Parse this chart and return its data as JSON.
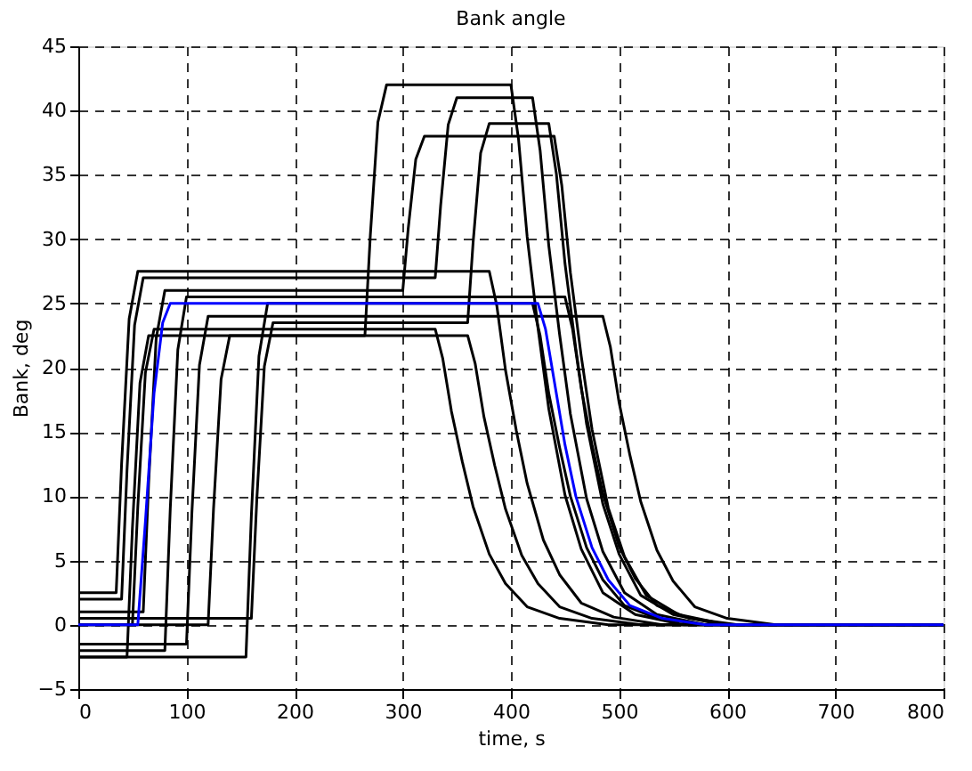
{
  "chart_data": {
    "type": "line",
    "title": "Bank angle",
    "xlabel": "time, s",
    "ylabel": "Bank, deg",
    "xlim": [
      0,
      800
    ],
    "xticks": [
      0,
      100,
      200,
      300,
      400,
      500,
      600,
      700,
      800
    ],
    "ylim": [
      -5,
      45
    ],
    "yticks": [
      -5,
      0,
      5,
      10,
      15,
      20,
      25,
      30,
      35,
      40,
      45
    ],
    "grid": true,
    "legend": false,
    "marker": "none",
    "line_style": "solid",
    "series": [
      {
        "color": "#000000",
        "x": [
          0,
          35,
          40,
          47,
          55,
          380,
          387,
          395,
          405,
          415,
          430,
          445,
          465,
          495,
          540,
          800
        ],
        "values": [
          2.5,
          2.5,
          12.5,
          23.8,
          27.5,
          27.5,
          24.8,
          19.8,
          15.1,
          11,
          6.6,
          3.9,
          1.7,
          0.6,
          0,
          0
        ]
      },
      {
        "color": "#000000",
        "x": [
          0,
          45,
          50,
          57,
          65,
          360,
          367,
          375,
          385,
          395,
          410,
          425,
          445,
          475,
          520,
          800
        ],
        "values": [
          -2.5,
          -2.5,
          7.5,
          18.8,
          22.5,
          22.5,
          20.3,
          16.2,
          12.4,
          9,
          5.4,
          3.2,
          1.4,
          0.5,
          0,
          0
        ]
      },
      {
        "color": "#000000",
        "x": [
          0,
          120,
          125,
          132,
          140,
          265,
          270,
          277,
          285,
          400,
          407,
          415,
          425,
          435,
          450,
          465,
          485,
          515,
          560,
          800
        ],
        "values": [
          0,
          0,
          9,
          19.1,
          22.5,
          22.5,
          30.3,
          39.1,
          42,
          42,
          37.8,
          30.2,
          23.1,
          16.8,
          10.1,
          5.9,
          2.5,
          0.8,
          0,
          0
        ]
      },
      {
        "color": "#000000",
        "x": [
          0,
          155,
          160,
          167,
          175,
          420,
          427,
          435,
          445,
          455,
          470,
          485,
          505,
          535,
          580,
          800
        ],
        "values": [
          -2.5,
          -2.5,
          8.5,
          20.9,
          25,
          25,
          22.5,
          18,
          13.8,
          10,
          6,
          3.5,
          1.5,
          0.5,
          0,
          0
        ]
      },
      {
        "color": "#000000",
        "x": [
          0,
          60,
          65,
          72,
          80,
          300,
          305,
          312,
          320,
          440,
          447,
          455,
          465,
          475,
          490,
          505,
          525,
          555,
          600,
          800
        ],
        "values": [
          1,
          1,
          11,
          22.3,
          26,
          26,
          30.8,
          36.2,
          38,
          38,
          34.2,
          27.4,
          20.9,
          15.2,
          9.1,
          5.3,
          2.3,
          0.8,
          0,
          0
        ]
      },
      {
        "color": "#000000",
        "x": [
          0,
          100,
          105,
          112,
          120,
          485,
          492,
          500,
          510,
          520,
          535,
          550,
          570,
          600,
          645,
          800
        ],
        "values": [
          -1.5,
          -1.5,
          8.7,
          20.2,
          24,
          24,
          21.6,
          17.3,
          13.2,
          9.6,
          5.8,
          3.4,
          1.4,
          0.5,
          0,
          0
        ]
      },
      {
        "color": "#000000",
        "x": [
          0,
          40,
          45,
          52,
          60,
          330,
          335,
          342,
          350,
          420,
          427,
          435,
          445,
          455,
          470,
          485,
          505,
          535,
          580,
          800
        ],
        "values": [
          2,
          2,
          12,
          23.3,
          27,
          27,
          32.6,
          38.9,
          41,
          41,
          36.9,
          29.5,
          22.6,
          16.4,
          9.8,
          5.7,
          2.5,
          0.8,
          0,
          0
        ]
      },
      {
        "color": "#000000",
        "x": [
          0,
          50,
          55,
          62,
          70,
          330,
          337,
          345,
          355,
          365,
          380,
          395,
          415,
          445,
          490,
          800
        ],
        "values": [
          0,
          0,
          9.2,
          19.6,
          23,
          23,
          20.7,
          16.6,
          12.7,
          9.2,
          5.5,
          3.2,
          1.4,
          0.5,
          0,
          0
        ]
      },
      {
        "color": "#000000",
        "x": [
          0,
          80,
          85,
          92,
          100,
          450,
          457,
          465,
          475,
          485,
          500,
          515,
          535,
          565,
          610,
          800
        ],
        "values": [
          -2,
          -2,
          9,
          21.4,
          25.5,
          25.5,
          23,
          18.4,
          14,
          10.2,
          6.1,
          3.6,
          1.5,
          0.5,
          0,
          0
        ]
      },
      {
        "color": "#000000",
        "x": [
          0,
          160,
          165,
          172,
          180,
          360,
          365,
          372,
          380,
          435,
          442,
          450,
          460,
          470,
          485,
          500,
          520,
          550,
          595,
          800
        ],
        "values": [
          0.5,
          0.5,
          9.7,
          20.1,
          23.5,
          23.5,
          29.7,
          36.7,
          39,
          39,
          35.1,
          28.1,
          21.5,
          15.6,
          9.4,
          5.5,
          2.3,
          0.8,
          0,
          0
        ]
      },
      {
        "color": "#0000ff",
        "x": [
          0,
          55,
          62,
          70,
          78,
          85,
          425,
          432,
          440,
          450,
          460,
          475,
          490,
          510,
          540,
          580,
          800
        ],
        "values": [
          0,
          0,
          8,
          18,
          23.5,
          25,
          25,
          23,
          19,
          14,
          10,
          6,
          3.5,
          1.5,
          0.5,
          0,
          0
        ]
      }
    ]
  }
}
